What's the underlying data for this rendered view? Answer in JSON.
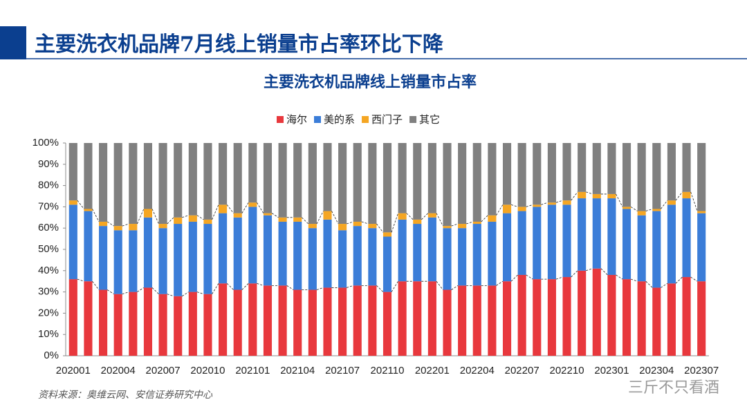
{
  "slide_title": "主要洗衣机品牌7月线上销量市占率环比下降",
  "source": "资料来源：奥维云网、安信证券研究中心",
  "watermark": "三斤不只看酒",
  "chart_data": {
    "type": "stacked_bar",
    "title": "主要洗衣机品牌线上销量市占率",
    "categories": [
      "202001",
      null,
      null,
      "202004",
      null,
      null,
      "202007",
      null,
      null,
      "202010",
      null,
      null,
      "202101",
      null,
      null,
      "202104",
      null,
      null,
      "202107",
      null,
      null,
      "202110",
      null,
      null,
      "202201",
      null,
      null,
      "202204",
      null,
      null,
      "202207",
      null,
      null,
      "202210",
      null,
      null,
      "202301",
      null,
      null,
      "202304",
      null,
      null,
      "202307"
    ],
    "series": [
      {
        "name": "海尔",
        "color": "#e8383d",
        "values": [
          36,
          35,
          31,
          29,
          30,
          32,
          29,
          28,
          30,
          29,
          34,
          31,
          34,
          33,
          33,
          31,
          31,
          32,
          32,
          33,
          33,
          30,
          35,
          35,
          35,
          31,
          33,
          33,
          33,
          35,
          38,
          36,
          36,
          37,
          40,
          41,
          38,
          36,
          35,
          32,
          34,
          37,
          35
        ]
      },
      {
        "name": "美的系",
        "color": "#3b7dd8",
        "values": [
          35,
          33,
          30,
          30,
          29,
          33,
          31,
          34,
          33,
          33,
          33,
          34,
          36,
          33,
          30,
          32,
          29,
          32,
          27,
          28,
          27,
          26,
          29,
          27,
          30,
          29,
          27,
          29,
          30,
          32,
          30,
          34,
          35,
          34,
          34,
          33,
          36,
          33,
          31,
          36,
          37,
          37,
          32
        ]
      },
      {
        "name": "西门子",
        "color": "#f5a623",
        "values": [
          2,
          1,
          2,
          2,
          3,
          4,
          2,
          3,
          3,
          2,
          4,
          2,
          2,
          1,
          2,
          2,
          2,
          4,
          3,
          2,
          2,
          2,
          3,
          2,
          2,
          1,
          2,
          1,
          3,
          4,
          2,
          1,
          1,
          2,
          3,
          2,
          2,
          1,
          2,
          1,
          2,
          3,
          1
        ]
      },
      {
        "name": "其它",
        "color": "#808080",
        "values": [
          27,
          31,
          37,
          39,
          38,
          31,
          38,
          35,
          34,
          36,
          29,
          33,
          28,
          33,
          35,
          35,
          38,
          32,
          38,
          37,
          38,
          42,
          33,
          36,
          33,
          39,
          38,
          37,
          34,
          29,
          30,
          29,
          28,
          27,
          23,
          24,
          24,
          30,
          32,
          31,
          27,
          23,
          32
        ]
      }
    ],
    "ylim": [
      0,
      100
    ],
    "yticks": [
      {
        "value": 0,
        "label": "0%"
      },
      {
        "value": 10,
        "label": "10%"
      },
      {
        "value": 20,
        "label": "20%"
      },
      {
        "value": 30,
        "label": "30%"
      },
      {
        "value": 40,
        "label": "40%"
      },
      {
        "value": 50,
        "label": "50%"
      },
      {
        "value": 60,
        "label": "60%"
      },
      {
        "value": 70,
        "label": "70%"
      },
      {
        "value": 80,
        "label": "80%"
      },
      {
        "value": 90,
        "label": "90%"
      },
      {
        "value": 100,
        "label": "100%"
      }
    ],
    "legend": "top"
  }
}
